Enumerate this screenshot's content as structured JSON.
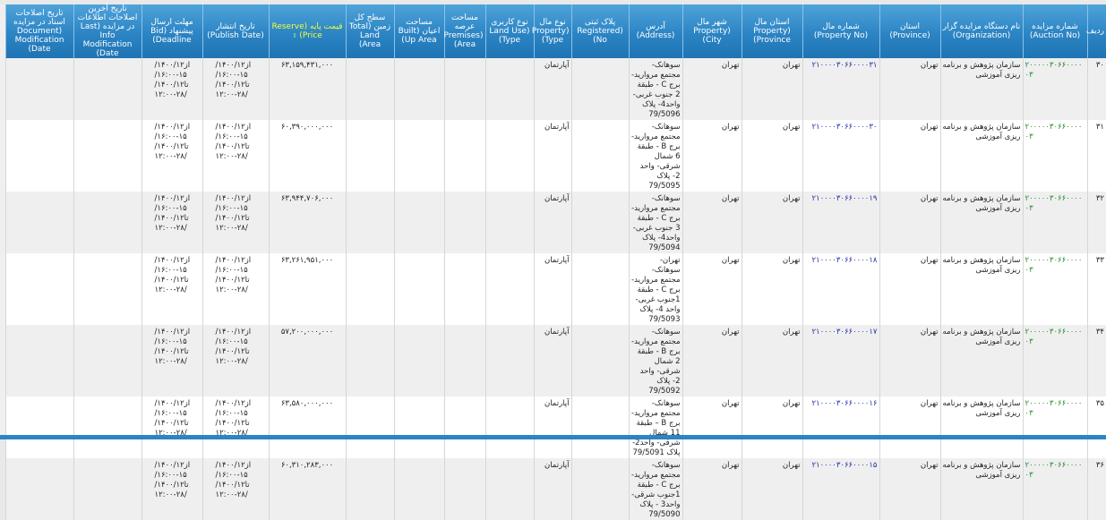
{
  "headers": [
    "ردیف",
    "شماره مزایده (Auction No)",
    "نام دستگاه مزایده گزار (Organization)",
    "استان (Province)",
    "شماره مال (Property No)",
    "استان مال (Property Province)",
    "شهر مال (Property City)",
    "آدرس (Address)",
    "پلاک ثبتی (Registered No)",
    "نوع مال (Property Type)",
    "نوع کاربری (Land Use Type)",
    "مساحت عرصه (Premises Area)",
    "مساحت اعیان (Built Up Area)",
    "سطح کل زمین (Total Land Area)",
    "قیمت پایه (Reserve Price)",
    "تاریخ انتشار (Publish Date)",
    "مهلت ارسال پیشنهاد (Bid Deadline)",
    "تاریخ آخرین اصلاحات اطلاعات در مزایده (Last Info Modification Date)",
    "تاریخ اصلاحات اسناد در مزایده (Document Modification Date)"
  ],
  "sort_icon": "sort-icon",
  "rows": [
    {
      "n": "۳۰",
      "auction": "۲۰۰۰۰۰۳۰۶۶۰۰۰۰۰۳",
      "org": "سازمان پژوهش و برنامه ریزی آموزشی",
      "province": "تهران",
      "pno": "۲۱۰۰۰۰۳۰۶۶۰۰۰۰۳۱",
      "pprov": "تهران",
      "city": "تهران",
      "addr": "سوهانک- مجتمع مروارید- برج C - طبقة 2 جنوب غربی- واحد4- پلاک 79/5096",
      "reg": "",
      "ptype": "آپارتمان",
      "landuse": "",
      "premises": "",
      "built": "",
      "total": "",
      "price": "۶۳,۱۵۹,۴۳۱,۰۰۰",
      "publish": "از۱۴۰۰/۱۲/ ۱۵-۱۶:۰۰/ تا۱۴۰۰/۱۲/ ۲۸-۱۲:۰۰/",
      "deadline": "از۱۴۰۰/۱۲/ ۱۵-۱۶:۰۰/ تا۱۴۰۰/۱۲/ ۲۸-۱۲:۰۰/",
      "lastmod": "",
      "docmod": ""
    },
    {
      "n": "۳۱",
      "auction": "۲۰۰۰۰۰۳۰۶۶۰۰۰۰۰۳",
      "org": "سازمان پژوهش و برنامه ریزی آموزشی",
      "province": "تهران",
      "pno": "۲۱۰۰۰۰۳۰۶۶۰۰۰۰۳۰",
      "pprov": "تهران",
      "city": "تهران",
      "addr": "سوهانک- مجتمع مروارید- برج B - طبقة 6 شمال شرقی- واحد 2- پلاک 79/5095",
      "reg": "",
      "ptype": "آپارتمان",
      "landuse": "",
      "premises": "",
      "built": "",
      "total": "",
      "price": "۶۰,۳۹۰,۰۰۰,۰۰۰",
      "publish": "از۱۴۰۰/۱۲/ ۱۵-۱۶:۰۰/ تا۱۴۰۰/۱۲/ ۲۸-۱۲:۰۰/",
      "deadline": "از۱۴۰۰/۱۲/ ۱۵-۱۶:۰۰/ تا۱۴۰۰/۱۲/ ۲۸-۱۲:۰۰/",
      "lastmod": "",
      "docmod": ""
    },
    {
      "n": "۳۲",
      "auction": "۲۰۰۰۰۰۳۰۶۶۰۰۰۰۰۳",
      "org": "سازمان پژوهش و برنامه ریزی آموزشی",
      "province": "تهران",
      "pno": "۲۱۰۰۰۰۳۰۶۶۰۰۰۰۱۹",
      "pprov": "تهران",
      "city": "تهران",
      "addr": "سوهانک- مجتمع مروارید- برج C - طبقة 3 جنوب غربی- واحد4- پلاک 79/5094",
      "reg": "",
      "ptype": "آپارتمان",
      "landuse": "",
      "premises": "",
      "built": "",
      "total": "",
      "price": "۶۳,۹۴۴,۷۰۶,۰۰۰",
      "publish": "از۱۴۰۰/۱۲/ ۱۵-۱۶:۰۰/ تا۱۴۰۰/۱۲/ ۲۸-۱۲:۰۰/",
      "deadline": "از۱۴۰۰/۱۲/ ۱۵-۱۶:۰۰/ تا۱۴۰۰/۱۲/ ۲۸-۱۲:۰۰/",
      "lastmod": "",
      "docmod": ""
    },
    {
      "n": "۳۳",
      "auction": "۲۰۰۰۰۰۳۰۶۶۰۰۰۰۰۳",
      "org": "سازمان پژوهش و برنامه ریزی آموزشی",
      "province": "تهران",
      "pno": "۲۱۰۰۰۰۳۰۶۶۰۰۰۰۱۸",
      "pprov": "تهران",
      "city": "تهران",
      "addr": "تهران- سوهانک- مجتمع مروارید- برج C - طبقة 1جنوب غربی- واحد 4- پلاک 79/5093",
      "reg": "",
      "ptype": "آپارتمان",
      "landuse": "",
      "premises": "",
      "built": "",
      "total": "",
      "price": "۶۳,۲۶۱,۹۵۱,۰۰۰",
      "publish": "از۱۴۰۰/۱۲/ ۱۵-۱۶:۰۰/ تا۱۴۰۰/۱۲/ ۲۸-۱۲:۰۰/",
      "deadline": "از۱۴۰۰/۱۲/ ۱۵-۱۶:۰۰/ تا۱۴۰۰/۱۲/ ۲۸-۱۲:۰۰/",
      "lastmod": "",
      "docmod": ""
    },
    {
      "n": "۳۴",
      "auction": "۲۰۰۰۰۰۳۰۶۶۰۰۰۰۰۳",
      "org": "سازمان پژوهش و برنامه ریزی آموزشی",
      "province": "تهران",
      "pno": "۲۱۰۰۰۰۳۰۶۶۰۰۰۰۱۷",
      "pprov": "تهران",
      "city": "تهران",
      "addr": "سوهانک- مجتمع مروارید- برج B - طبقة 2 شمال شرقی- واحد 2- پلاک 79/5092",
      "reg": "",
      "ptype": "آپارتمان",
      "landuse": "",
      "premises": "",
      "built": "",
      "total": "",
      "price": "۵۷,۲۰۰,۰۰۰,۰۰۰",
      "publish": "از۱۴۰۰/۱۲/ ۱۵-۱۶:۰۰/ تا۱۴۰۰/۱۲/ ۲۸-۱۲:۰۰/",
      "deadline": "از۱۴۰۰/۱۲/ ۱۵-۱۶:۰۰/ تا۱۴۰۰/۱۲/ ۲۸-۱۲:۰۰/",
      "lastmod": "",
      "docmod": ""
    },
    {
      "n": "۳۵",
      "auction": "۲۰۰۰۰۰۳۰۶۶۰۰۰۰۰۳",
      "org": "سازمان پژوهش و برنامه ریزی آموزشی",
      "province": "تهران",
      "pno": "۲۱۰۰۰۰۳۰۶۶۰۰۰۰۱۶",
      "pprov": "تهران",
      "city": "تهران",
      "addr": "سوهانک- مجتمع مروارید- برج B – طبقة 11 شمال شرقی- واحد2- پلاک 79/5091",
      "reg": "",
      "ptype": "آپارتمان",
      "landuse": "",
      "premises": "",
      "built": "",
      "total": "",
      "price": "۶۳,۵۸۰,۰۰۰,۰۰۰",
      "publish": "از۱۴۰۰/۱۲/ ۱۵-۱۶:۰۰/ تا۱۴۰۰/۱۲/ ۲۸-۱۲:۰۰/",
      "deadline": "از۱۴۰۰/۱۲/ ۱۵-۱۶:۰۰/ تا۱۴۰۰/۱۲/ ۲۸-۱۲:۰۰/",
      "lastmod": "",
      "docmod": ""
    },
    {
      "n": "۳۶",
      "auction": "۲۰۰۰۰۰۳۰۶۶۰۰۰۰۰۳",
      "org": "سازمان پژوهش و برنامه ریزی آموزشی",
      "province": "تهران",
      "pno": "۲۱۰۰۰۰۳۰۶۶۰۰۰۰۱۵",
      "pprov": "تهران",
      "city": "تهران",
      "addr": "سوهانک- مجتمع مروارید- برج C - طبقة 1جنوب شرقی- واحد3 - پلاک 79/5090",
      "reg": "",
      "ptype": "آپارتمان",
      "landuse": "",
      "premises": "",
      "built": "",
      "total": "",
      "price": "۶۰,۳۱۰,۲۸۳,۰۰۰",
      "publish": "از۱۴۰۰/۱۲/ ۱۵-۱۶:۰۰/ تا۱۴۰۰/۱۲/ ۲۸-۱۲:۰۰/",
      "deadline": "از۱۴۰۰/۱۲/ ۱۵-۱۶:۰۰/ تا۱۴۰۰/۱۲/ ۲۸-۱۲:۰۰/",
      "lastmod": "",
      "docmod": ""
    }
  ]
}
